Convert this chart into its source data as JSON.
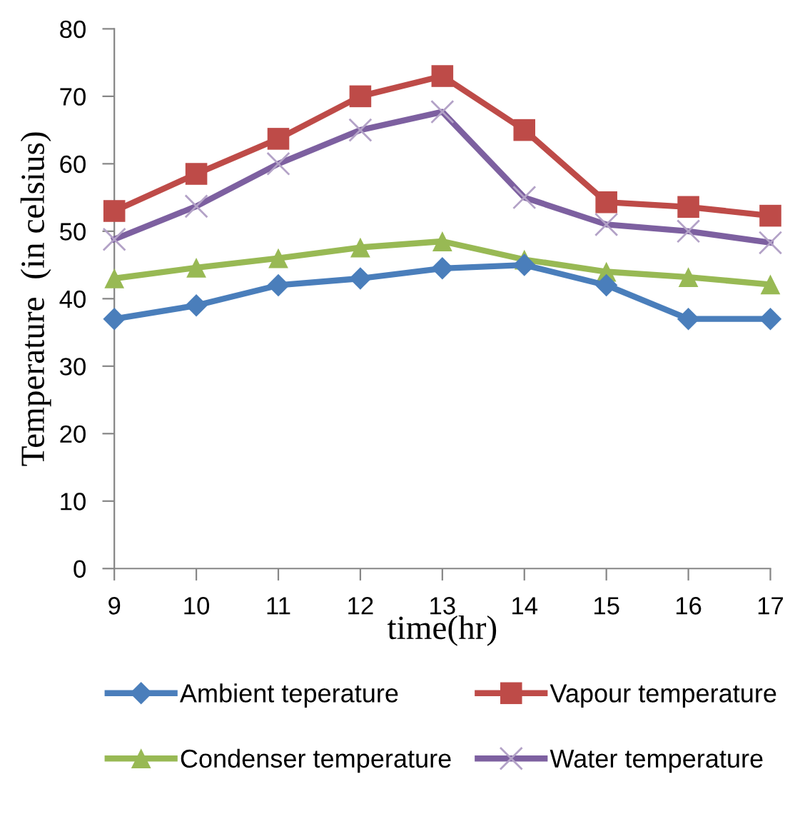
{
  "chart_data": {
    "type": "line",
    "xlabel": "time(hr)",
    "ylabel": "Temperature  (in celsius)",
    "x": [
      9,
      10,
      11,
      12,
      13,
      14,
      15,
      16,
      17
    ],
    "xlim": [
      9,
      17
    ],
    "xticks": [
      9,
      10,
      11,
      12,
      13,
      14,
      15,
      16,
      17
    ],
    "ylim": [
      0,
      80
    ],
    "yticks": [
      0,
      10,
      20,
      30,
      40,
      50,
      60,
      70,
      80
    ],
    "grid": false,
    "legend": "bottom",
    "series": [
      {
        "name": "Ambient teperature",
        "color": "#4a7ebb",
        "marker": "diamond",
        "values": [
          37,
          39,
          42,
          43,
          44.5,
          45,
          42,
          37,
          37
        ]
      },
      {
        "name": "Vapour temperature",
        "color": "#be4b48",
        "marker": "square",
        "values": [
          53,
          58.5,
          63.7,
          70,
          73,
          65,
          54.3,
          53.6,
          52.3
        ]
      },
      {
        "name": "Condenser temperature",
        "color": "#98b954",
        "marker": "triangle",
        "values": [
          43,
          44.6,
          46,
          47.6,
          48.5,
          45.8,
          44,
          43.2,
          42.1
        ]
      },
      {
        "name": "Water temperature",
        "color": "#7d60a0",
        "marker": "cross",
        "values": [
          48.8,
          53.7,
          60,
          65,
          67.7,
          55,
          51,
          50,
          48.3
        ]
      }
    ]
  }
}
